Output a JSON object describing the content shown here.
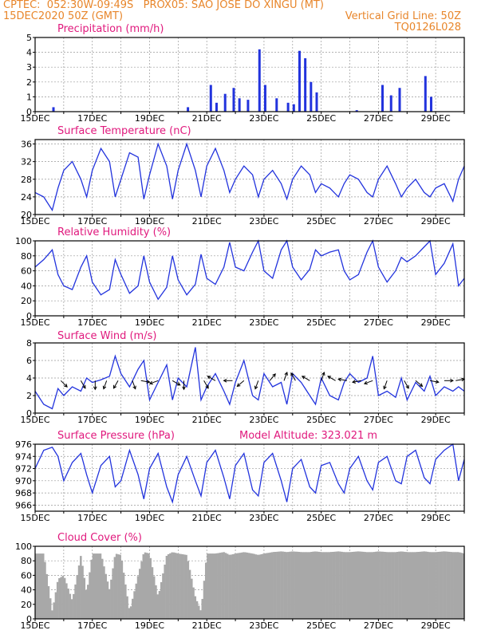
{
  "header": {
    "line1": "CPTEC:  052:30W-09:49S   PROX05: SAO JOSE DO XINGU (MT)",
    "line2_left": "15DEC2020 50Z (GMT)",
    "line2_right": "Vertical Grid Line: 50Z",
    "line3_right": "TQ0126L028"
  },
  "colors": {
    "header": "#e8862b",
    "title": "#e0197d",
    "series": "#2233dd",
    "cloud": "#a8a8a8"
  },
  "x_labels": [
    "15DEC",
    "17DEC",
    "19DEC",
    "21DEC",
    "23DEC",
    "25DEC",
    "27DEC",
    "29DEC"
  ],
  "chart_data": [
    {
      "type": "bar",
      "title": "Precipitation (mm/h)",
      "ylim": [
        0,
        5
      ],
      "yticks": [
        0,
        1,
        2,
        3,
        4,
        5
      ],
      "x_range_days": [
        15,
        30
      ],
      "events": [
        {
          "day": 15.6,
          "value": 0.3
        },
        {
          "day": 20.3,
          "value": 0.3
        },
        {
          "day": 21.1,
          "value": 1.8
        },
        {
          "day": 21.3,
          "value": 0.6
        },
        {
          "day": 21.6,
          "value": 1.2
        },
        {
          "day": 21.9,
          "value": 1.6
        },
        {
          "day": 22.1,
          "value": 0.9
        },
        {
          "day": 22.4,
          "value": 0.8
        },
        {
          "day": 22.8,
          "value": 4.2
        },
        {
          "day": 23.0,
          "value": 1.8
        },
        {
          "day": 23.4,
          "value": 0.9
        },
        {
          "day": 23.8,
          "value": 0.6
        },
        {
          "day": 24.0,
          "value": 0.5
        },
        {
          "day": 24.2,
          "value": 4.1
        },
        {
          "day": 24.4,
          "value": 3.6
        },
        {
          "day": 24.6,
          "value": 2.0
        },
        {
          "day": 24.8,
          "value": 1.3
        },
        {
          "day": 26.2,
          "value": 0.1
        },
        {
          "day": 27.1,
          "value": 1.8
        },
        {
          "day": 27.4,
          "value": 1.1
        },
        {
          "day": 27.7,
          "value": 1.6
        },
        {
          "day": 28.6,
          "value": 2.4
        },
        {
          "day": 28.8,
          "value": 1.0
        }
      ]
    },
    {
      "type": "line",
      "title": "Surface Temperature (nC)",
      "ylim": [
        20,
        37
      ],
      "yticks": [
        20,
        24,
        28,
        32,
        36
      ],
      "x": [
        15.0,
        15.3,
        15.6,
        15.8,
        16.0,
        16.3,
        16.6,
        16.8,
        17.0,
        17.3,
        17.6,
        17.8,
        18.0,
        18.3,
        18.6,
        18.8,
        19.0,
        19.3,
        19.6,
        19.8,
        20.0,
        20.3,
        20.6,
        20.8,
        21.0,
        21.3,
        21.6,
        21.8,
        22.0,
        22.3,
        22.6,
        22.8,
        23.0,
        23.3,
        23.6,
        23.8,
        24.0,
        24.3,
        24.6,
        24.8,
        25.0,
        25.3,
        25.6,
        25.8,
        26.0,
        26.3,
        26.6,
        26.8,
        27.0,
        27.3,
        27.6,
        27.8,
        28.0,
        28.3,
        28.6,
        28.8,
        29.0,
        29.3,
        29.6,
        29.8,
        30.0
      ],
      "y": [
        25.0,
        24.0,
        21.0,
        26.0,
        30.0,
        32.0,
        28.0,
        24.0,
        30.0,
        35.0,
        32.0,
        24.0,
        28.0,
        34.0,
        33.0,
        23.5,
        29.0,
        36.0,
        31.0,
        23.5,
        30.0,
        36.0,
        30.0,
        24.0,
        31.0,
        35.0,
        30.0,
        25.0,
        28.0,
        31.0,
        29.0,
        24.0,
        28.0,
        30.0,
        27.0,
        23.5,
        28.0,
        31.0,
        29.0,
        25.0,
        27.0,
        26.0,
        24.0,
        27.0,
        29.0,
        28.0,
        25.0,
        24.0,
        28.0,
        31.0,
        27.0,
        24.0,
        26.0,
        28.0,
        25.0,
        24.0,
        26.0,
        27.0,
        23.0,
        28.0,
        31.0
      ]
    },
    {
      "type": "line",
      "title": "Relative Humidity (%)",
      "ylim": [
        0,
        100
      ],
      "yticks": [
        0,
        20,
        40,
        60,
        80,
        100
      ],
      "x": [
        15.0,
        15.3,
        15.6,
        15.8,
        16.0,
        16.3,
        16.6,
        16.8,
        17.0,
        17.3,
        17.6,
        17.8,
        18.0,
        18.3,
        18.6,
        18.8,
        19.0,
        19.3,
        19.6,
        19.8,
        20.0,
        20.3,
        20.6,
        20.8,
        21.0,
        21.3,
        21.6,
        21.8,
        22.0,
        22.3,
        22.6,
        22.8,
        23.0,
        23.3,
        23.6,
        23.8,
        24.0,
        24.3,
        24.6,
        24.8,
        25.0,
        25.3,
        25.6,
        25.8,
        26.0,
        26.3,
        26.6,
        26.8,
        27.0,
        27.3,
        27.6,
        27.8,
        28.0,
        28.3,
        28.6,
        28.8,
        29.0,
        29.3,
        29.6,
        29.8,
        30.0
      ],
      "y": [
        65.0,
        75.0,
        88.0,
        55.0,
        40.0,
        35.0,
        65.0,
        80.0,
        45.0,
        28.0,
        35.0,
        75.0,
        55.0,
        30.0,
        40.0,
        80.0,
        45.0,
        22.0,
        38.0,
        80.0,
        48.0,
        28.0,
        42.0,
        82.0,
        50.0,
        42.0,
        65.0,
        98.0,
        65.0,
        60.0,
        85.0,
        100.0,
        60.0,
        50.0,
        88.0,
        100.0,
        65.0,
        48.0,
        62.0,
        88.0,
        80.0,
        85.0,
        88.0,
        60.0,
        48.0,
        55.0,
        85.0,
        100.0,
        65.0,
        45.0,
        60.0,
        78.0,
        72.0,
        80.0,
        92.0,
        100.0,
        55.0,
        70.0,
        96.0,
        40.0,
        50.0
      ]
    },
    {
      "type": "line",
      "title": "Surface Wind (m/s)",
      "ylim": [
        0,
        8
      ],
      "yticks": [
        0,
        2,
        4,
        6,
        8
      ],
      "x": [
        15.0,
        15.3,
        15.6,
        15.8,
        16.0,
        16.3,
        16.6,
        16.8,
        17.0,
        17.3,
        17.6,
        17.8,
        18.0,
        18.3,
        18.6,
        18.8,
        19.0,
        19.3,
        19.6,
        19.8,
        20.0,
        20.3,
        20.6,
        20.8,
        21.0,
        21.3,
        21.6,
        21.8,
        22.0,
        22.3,
        22.6,
        22.8,
        23.0,
        23.3,
        23.6,
        23.8,
        24.0,
        24.3,
        24.6,
        24.8,
        25.0,
        25.3,
        25.6,
        25.8,
        26.0,
        26.3,
        26.6,
        26.8,
        27.0,
        27.3,
        27.6,
        27.8,
        28.0,
        28.3,
        28.6,
        28.8,
        29.0,
        29.3,
        29.6,
        29.8,
        30.0
      ],
      "y": [
        2.5,
        1.0,
        0.5,
        2.8,
        2.0,
        3.0,
        2.5,
        4.0,
        3.5,
        3.8,
        4.2,
        6.5,
        4.5,
        3.0,
        5.0,
        6.0,
        1.5,
        3.5,
        5.5,
        1.5,
        4.0,
        3.0,
        7.5,
        1.5,
        3.0,
        4.5,
        2.5,
        1.0,
        3.5,
        6.0,
        2.0,
        1.5,
        4.5,
        3.0,
        3.5,
        1.0,
        4.5,
        3.5,
        2.0,
        1.0,
        4.0,
        2.0,
        1.5,
        3.5,
        4.5,
        3.5,
        4.0,
        6.5,
        2.0,
        2.5,
        1.8,
        4.0,
        1.5,
        3.5,
        2.5,
        4.2,
        2.0,
        3.0,
        2.5,
        3.0,
        2.5
      ],
      "arrows": [
        {
          "day": 15.9,
          "dir": 135
        },
        {
          "day": 16.6,
          "dir": 150
        },
        {
          "day": 17.1,
          "dir": 180
        },
        {
          "day": 17.5,
          "dir": 200
        },
        {
          "day": 17.9,
          "dir": 210
        },
        {
          "day": 18.4,
          "dir": 160
        },
        {
          "day": 18.7,
          "dir": 100
        },
        {
          "day": 19.3,
          "dir": 250
        },
        {
          "day": 19.8,
          "dir": 120
        },
        {
          "day": 20.2,
          "dir": 180
        },
        {
          "day": 20.9,
          "dir": 150
        },
        {
          "day": 21.3,
          "dir": 300
        },
        {
          "day": 21.9,
          "dir": 270
        },
        {
          "day": 22.3,
          "dir": 230
        },
        {
          "day": 22.8,
          "dir": 200
        },
        {
          "day": 23.2,
          "dir": 40
        },
        {
          "day": 23.7,
          "dir": 20
        },
        {
          "day": 24.1,
          "dir": 330
        },
        {
          "day": 24.6,
          "dir": 300
        },
        {
          "day": 25.0,
          "dir": 20
        },
        {
          "day": 25.5,
          "dir": 300
        },
        {
          "day": 25.9,
          "dir": 280
        },
        {
          "day": 26.4,
          "dir": 260
        },
        {
          "day": 26.8,
          "dir": 250
        },
        {
          "day": 27.3,
          "dir": 200
        },
        {
          "day": 27.9,
          "dir": 150
        },
        {
          "day": 28.3,
          "dir": 130
        },
        {
          "day": 28.8,
          "dir": 100
        },
        {
          "day": 29.3,
          "dir": 90
        },
        {
          "day": 29.7,
          "dir": 80
        }
      ]
    },
    {
      "type": "line",
      "title": "Surface Pressure (hPa)",
      "annotation": "Model Altitude: 323.021 m",
      "ylim": [
        965,
        976
      ],
      "yticks": [
        966,
        968,
        970,
        972,
        974,
        976
      ],
      "x": [
        15.0,
        15.3,
        15.6,
        15.8,
        16.0,
        16.3,
        16.6,
        16.8,
        17.0,
        17.3,
        17.6,
        17.8,
        18.0,
        18.3,
        18.6,
        18.8,
        19.0,
        19.3,
        19.6,
        19.8,
        20.0,
        20.3,
        20.6,
        20.8,
        21.0,
        21.3,
        21.6,
        21.8,
        22.0,
        22.3,
        22.6,
        22.8,
        23.0,
        23.3,
        23.6,
        23.8,
        24.0,
        24.3,
        24.6,
        24.8,
        25.0,
        25.3,
        25.6,
        25.8,
        26.0,
        26.3,
        26.6,
        26.8,
        27.0,
        27.3,
        27.6,
        27.8,
        28.0,
        28.3,
        28.6,
        28.8,
        29.0,
        29.3,
        29.6,
        29.8,
        30.0
      ],
      "y": [
        972.0,
        975.0,
        975.5,
        974.0,
        970.0,
        973.0,
        974.5,
        971.0,
        968.0,
        972.5,
        974.0,
        969.0,
        970.0,
        975.0,
        971.0,
        967.0,
        972.0,
        974.5,
        969.0,
        966.5,
        971.0,
        974.0,
        970.0,
        967.5,
        973.0,
        975.0,
        970.5,
        967.0,
        972.5,
        974.5,
        968.5,
        967.5,
        973.0,
        974.5,
        970.0,
        966.5,
        972.0,
        973.5,
        969.0,
        968.0,
        972.5,
        973.0,
        969.5,
        968.0,
        972.0,
        974.0,
        970.0,
        968.5,
        973.0,
        974.0,
        970.0,
        969.5,
        974.0,
        975.0,
        970.5,
        969.5,
        973.5,
        975.0,
        976.0,
        970.0,
        973.5
      ]
    },
    {
      "type": "area",
      "title": "Cloud Cover (%)",
      "ylim": [
        0,
        100
      ],
      "yticks": [
        0,
        20,
        40,
        60,
        80,
        100
      ],
      "x": [
        15.0,
        15.3,
        15.6,
        15.8,
        16.0,
        16.3,
        16.6,
        16.8,
        17.0,
        17.3,
        17.6,
        17.8,
        18.0,
        18.3,
        18.6,
        18.8,
        19.0,
        19.3,
        19.6,
        19.8,
        20.0,
        20.3,
        20.6,
        20.8,
        21.0,
        21.3,
        21.6,
        21.8,
        22.0,
        22.3,
        22.6,
        22.8,
        23.0,
        23.3,
        23.6,
        23.8,
        24.0,
        24.3,
        24.6,
        24.8,
        25.0,
        25.3,
        25.6,
        25.8,
        26.0,
        26.3,
        26.6,
        26.8,
        27.0,
        27.3,
        27.6,
        27.8,
        28.0,
        28.3,
        28.6,
        28.8,
        29.0,
        29.3,
        29.6,
        29.8,
        30.0
      ],
      "y": [
        90.0,
        90.0,
        10.0,
        55.0,
        60.0,
        25.0,
        88.0,
        35.0,
        90.0,
        90.0,
        40.0,
        90.0,
        88.0,
        10.0,
        60.0,
        92.0,
        90.0,
        30.0,
        88.0,
        92.0,
        90.0,
        88.0,
        30.0,
        10.0,
        90.0,
        90.0,
        92.0,
        88.0,
        90.0,
        92.0,
        90.0,
        88.0,
        90.0,
        92.0,
        93.0,
        92.0,
        93.0,
        92.0,
        92.0,
        93.0,
        92.0,
        92.0,
        93.0,
        92.0,
        92.0,
        93.0,
        92.0,
        92.0,
        93.0,
        92.0,
        92.0,
        93.0,
        92.0,
        92.0,
        93.0,
        92.0,
        92.0,
        93.0,
        92.0,
        92.0,
        90.0
      ]
    }
  ]
}
